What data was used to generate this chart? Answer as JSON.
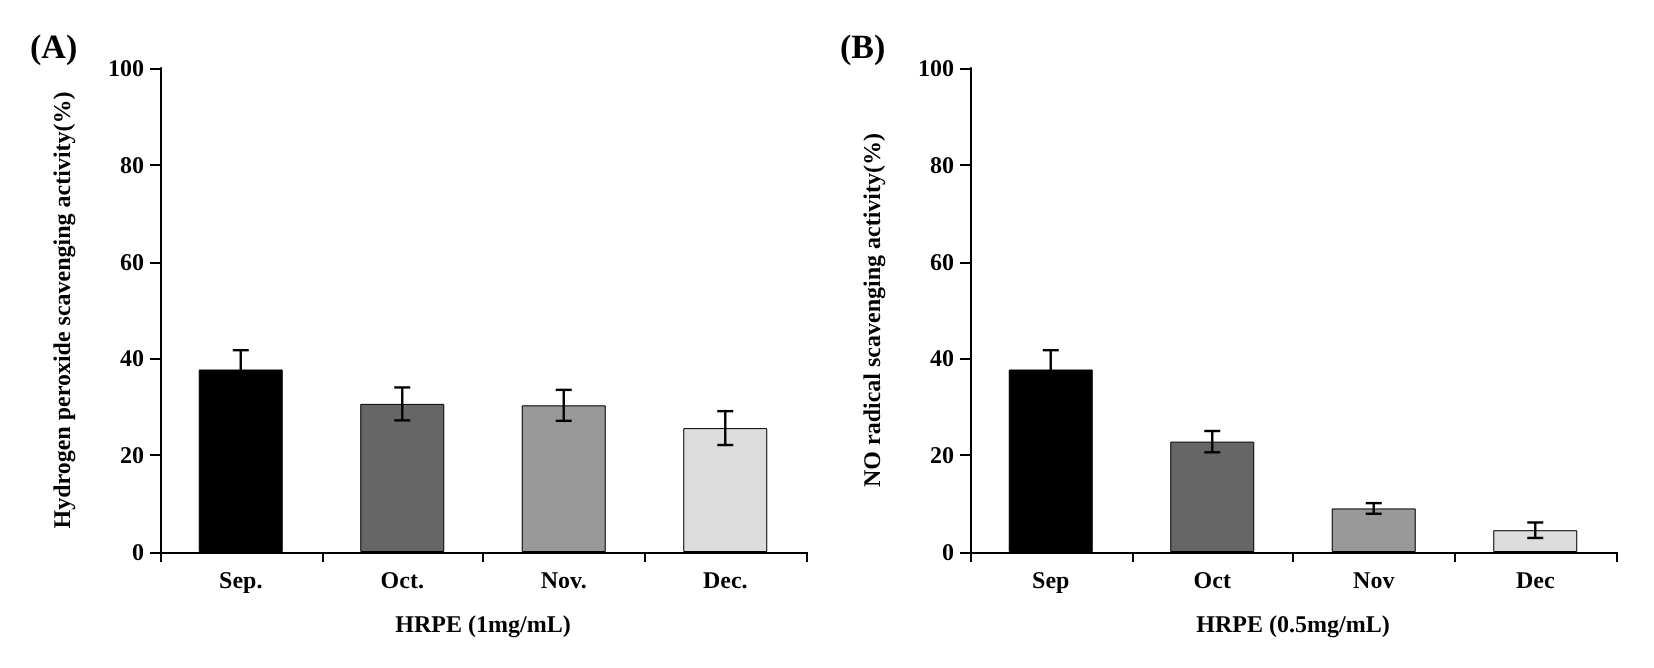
{
  "chart_data": [
    {
      "type": "bar",
      "title": "(A)",
      "xlabel": "HRPE (1mg/mL)",
      "ylabel": "Hydrogen peroxide scavenging activity(%)",
      "categories": [
        "Sep.",
        "Oct.",
        "Nov.",
        "Dec."
      ],
      "values": [
        37.7,
        30.6,
        30.3,
        25.6
      ],
      "errors": [
        4,
        3.4,
        3.2,
        3.5
      ],
      "colors": [
        "#000000",
        "#666666",
        "#999999",
        "#dddddd"
      ],
      "ylim": [
        0,
        100
      ],
      "yticks": [
        0,
        20,
        40,
        60,
        80,
        100
      ],
      "grid": false
    },
    {
      "type": "bar",
      "title": "(B)",
      "xlabel": "HRPE (0.5mg/mL)",
      "ylabel": "NO radical scavenging activity(%)",
      "categories": [
        "Sep",
        "Oct",
        "Nov",
        "Dec"
      ],
      "values": [
        37.7,
        22.8,
        9.0,
        4.5
      ],
      "errors": [
        4,
        2.2,
        1.1,
        1.6
      ],
      "colors": [
        "#000000",
        "#666666",
        "#999999",
        "#dddddd"
      ],
      "ylim": [
        0,
        100
      ],
      "yticks": [
        0,
        20,
        40,
        60,
        80,
        100
      ],
      "grid": false
    }
  ]
}
